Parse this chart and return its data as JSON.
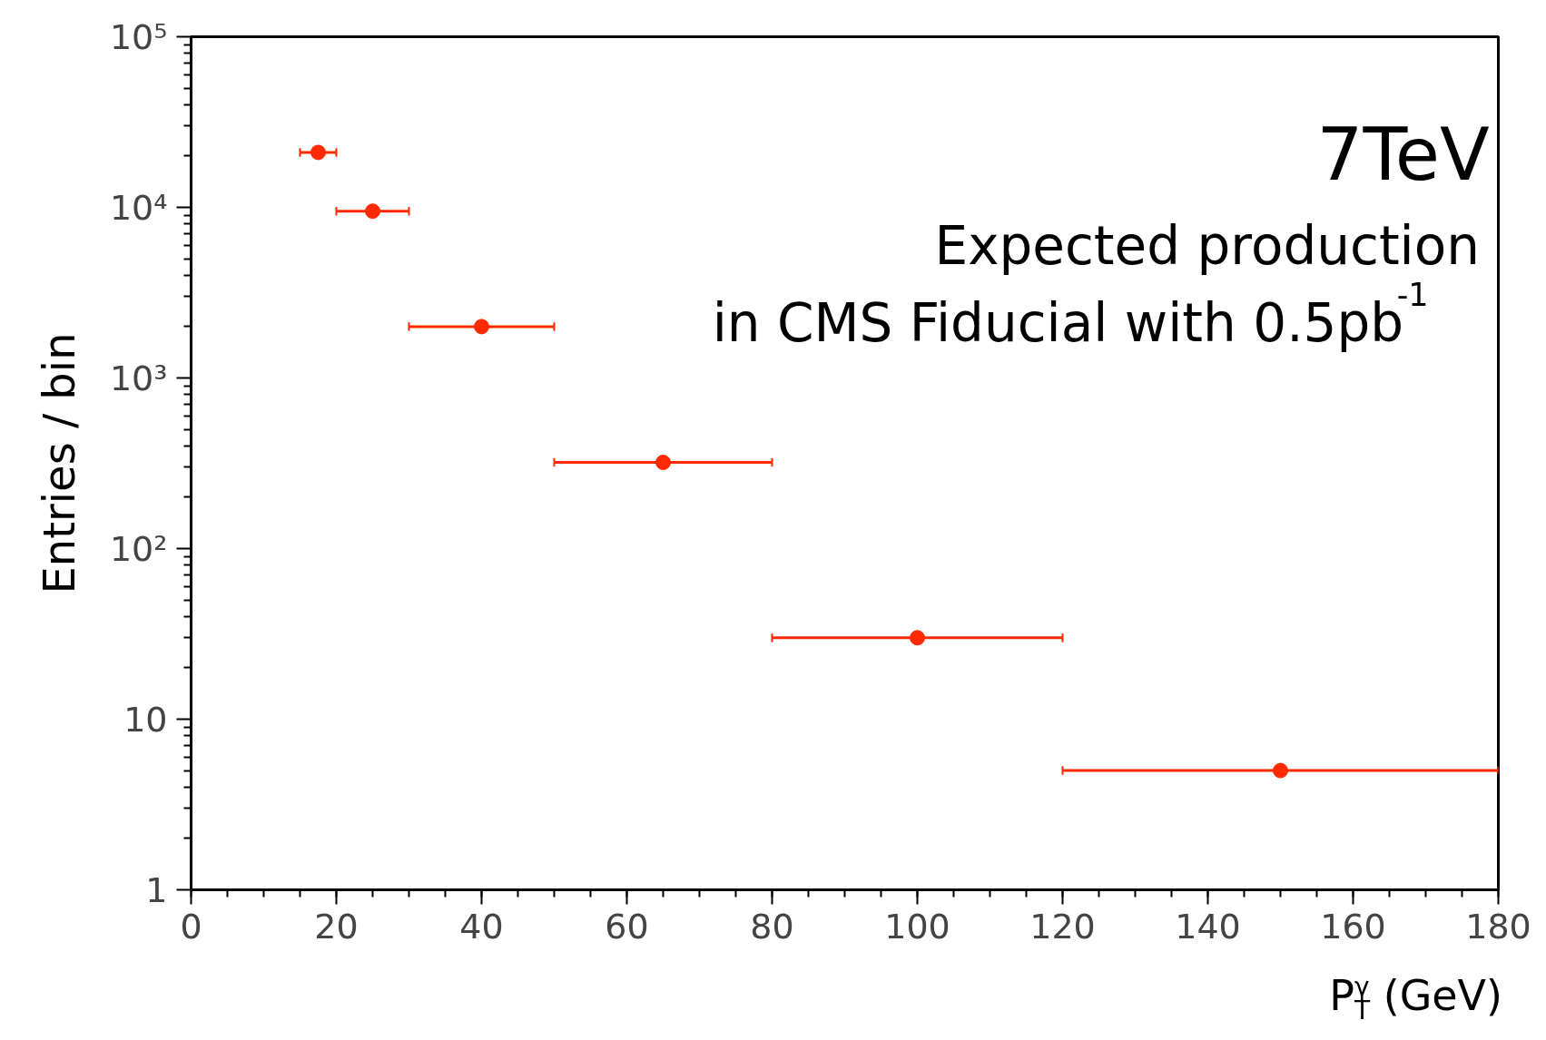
{
  "chart_data": {
    "type": "scatter",
    "title": "7TeV",
    "annotations": [
      "Expected production",
      "in CMS Fiducial with 0.5pb$^{-1}$"
    ],
    "xlabel": "P$^{γ}$$_{T}$ (GeV)",
    "ylabel": "Entries / bin",
    "x": [
      17.5,
      25,
      40,
      65,
      100,
      150
    ],
    "series": [
      {
        "color": "#ff2a00",
        "values": [
          21000,
          9500,
          2000,
          320,
          30,
          5
        ],
        "xerrors": [
          2.5,
          5,
          10,
          15,
          20,
          30
        ]
      }
    ],
    "log": "y",
    "marker": "circle",
    "grid": false,
    "xlim": [
      0,
      180
    ],
    "xticks": [
      0,
      20,
      40,
      60,
      80,
      100,
      120,
      140,
      160,
      180
    ],
    "ylim": [
      1,
      100000
    ],
    "yticks": [
      1,
      10,
      {
        "value": 100,
        "label": "10²"
      },
      {
        "value": 1000,
        "label": "10³"
      },
      {
        "value": 10000,
        "label": "10⁴"
      },
      {
        "value": 100000,
        "label": "10⁵"
      }
    ]
  }
}
